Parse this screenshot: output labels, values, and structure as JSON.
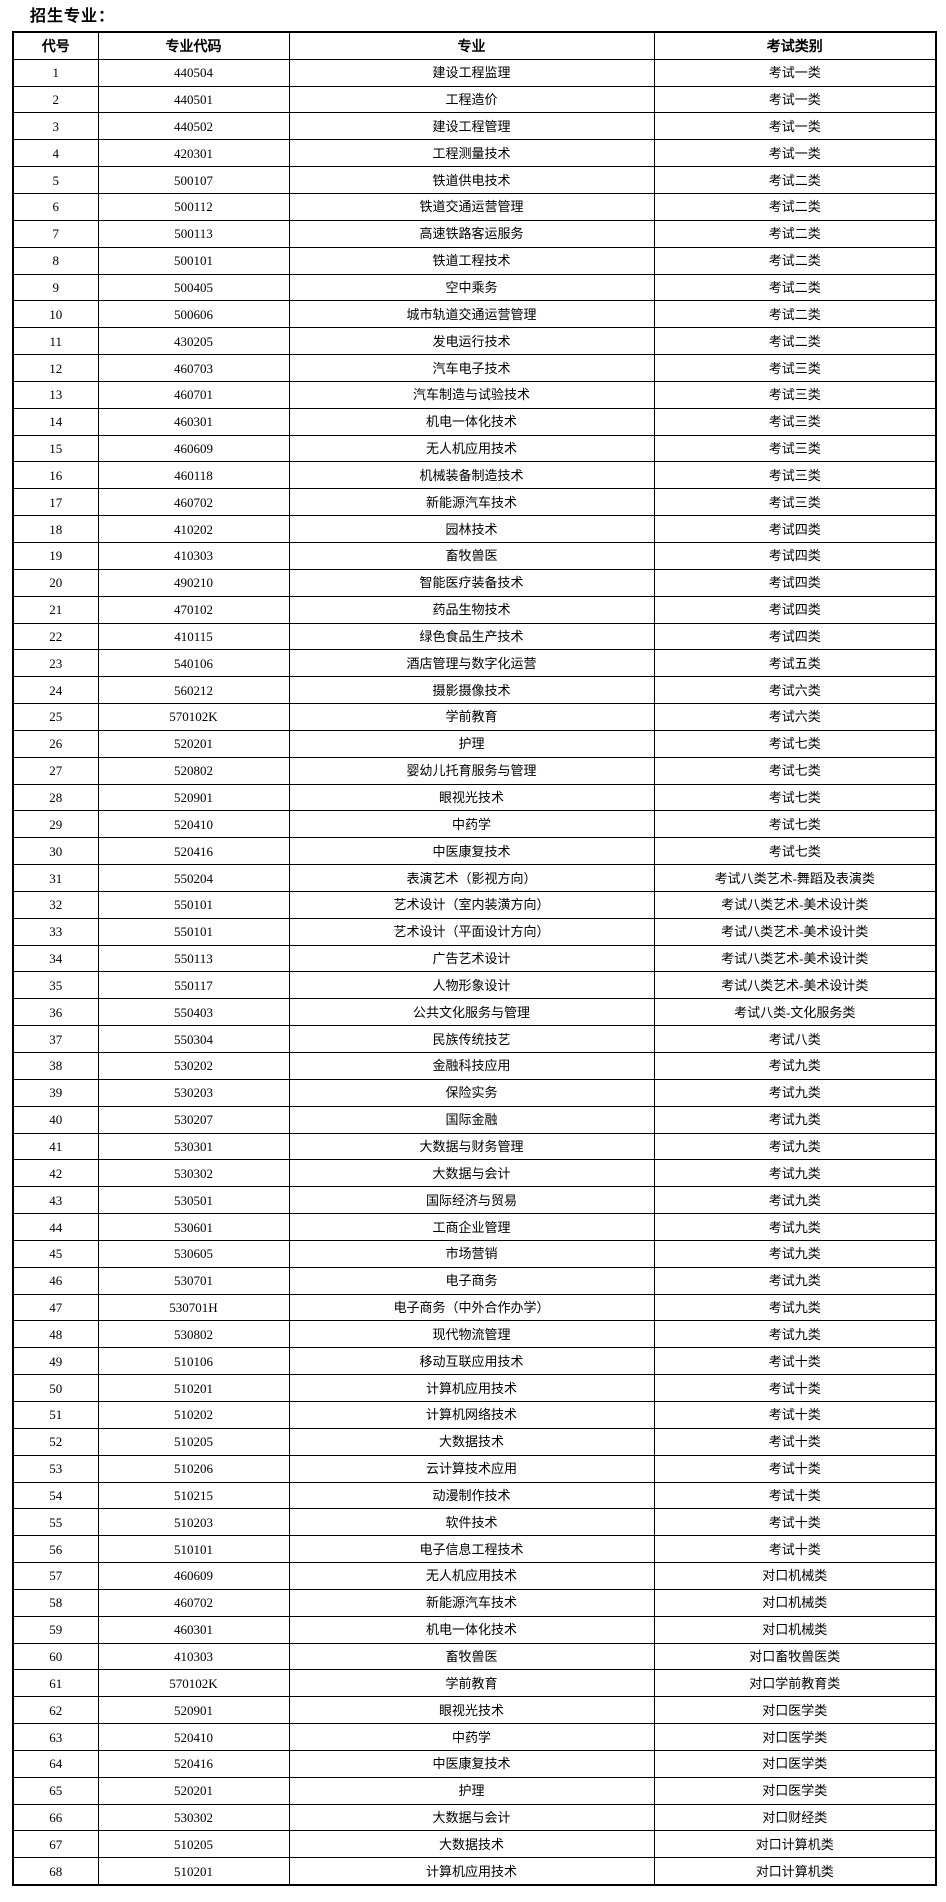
{
  "page": {
    "title": "招生专业："
  },
  "colors": {
    "text": "#000000",
    "border": "#000000",
    "background": "#ffffff"
  },
  "table": {
    "headers": [
      "代号",
      "专业代码",
      "专业",
      "考试类别"
    ],
    "rows": [
      [
        "1",
        "440504",
        "建设工程监理",
        "考试一类"
      ],
      [
        "2",
        "440501",
        "工程造价",
        "考试一类"
      ],
      [
        "3",
        "440502",
        "建设工程管理",
        "考试一类"
      ],
      [
        "4",
        "420301",
        "工程测量技术",
        "考试一类"
      ],
      [
        "5",
        "500107",
        "铁道供电技术",
        "考试二类"
      ],
      [
        "6",
        "500112",
        "铁道交通运营管理",
        "考试二类"
      ],
      [
        "7",
        "500113",
        "高速铁路客运服务",
        "考试二类"
      ],
      [
        "8",
        "500101",
        "铁道工程技术",
        "考试二类"
      ],
      [
        "9",
        "500405",
        "空中乘务",
        "考试二类"
      ],
      [
        "10",
        "500606",
        "城市轨道交通运营管理",
        "考试二类"
      ],
      [
        "11",
        "430205",
        "发电运行技术",
        "考试二类"
      ],
      [
        "12",
        "460703",
        "汽车电子技术",
        "考试三类"
      ],
      [
        "13",
        "460701",
        "汽车制造与试验技术",
        "考试三类"
      ],
      [
        "14",
        "460301",
        "机电一体化技术",
        "考试三类"
      ],
      [
        "15",
        "460609",
        "无人机应用技术",
        "考试三类"
      ],
      [
        "16",
        "460118",
        "机械装备制造技术",
        "考试三类"
      ],
      [
        "17",
        "460702",
        "新能源汽车技术",
        "考试三类"
      ],
      [
        "18",
        "410202",
        "园林技术",
        "考试四类"
      ],
      [
        "19",
        "410303",
        "畜牧兽医",
        "考试四类"
      ],
      [
        "20",
        "490210",
        "智能医疗装备技术",
        "考试四类"
      ],
      [
        "21",
        "470102",
        "药品生物技术",
        "考试四类"
      ],
      [
        "22",
        "410115",
        "绿色食品生产技术",
        "考试四类"
      ],
      [
        "23",
        "540106",
        "酒店管理与数字化运营",
        "考试五类"
      ],
      [
        "24",
        "560212",
        "摄影摄像技术",
        "考试六类"
      ],
      [
        "25",
        "570102K",
        "学前教育",
        "考试六类"
      ],
      [
        "26",
        "520201",
        "护理",
        "考试七类"
      ],
      [
        "27",
        "520802",
        "婴幼儿托育服务与管理",
        "考试七类"
      ],
      [
        "28",
        "520901",
        "眼视光技术",
        "考试七类"
      ],
      [
        "29",
        "520410",
        "中药学",
        "考试七类"
      ],
      [
        "30",
        "520416",
        "中医康复技术",
        "考试七类"
      ],
      [
        "31",
        "550204",
        "表演艺术（影视方向）",
        "考试八类艺术-舞蹈及表演类"
      ],
      [
        "32",
        "550101",
        "艺术设计（室内装潢方向）",
        "考试八类艺术-美术设计类"
      ],
      [
        "33",
        "550101",
        "艺术设计（平面设计方向）",
        "考试八类艺术-美术设计类"
      ],
      [
        "34",
        "550113",
        "广告艺术设计",
        "考试八类艺术-美术设计类"
      ],
      [
        "35",
        "550117",
        "人物形象设计",
        "考试八类艺术-美术设计类"
      ],
      [
        "36",
        "550403",
        "公共文化服务与管理",
        "考试八类-文化服务类"
      ],
      [
        "37",
        "550304",
        "民族传统技艺",
        "考试八类"
      ],
      [
        "38",
        "530202",
        "金融科技应用",
        "考试九类"
      ],
      [
        "39",
        "530203",
        "保险实务",
        "考试九类"
      ],
      [
        "40",
        "530207",
        "国际金融",
        "考试九类"
      ],
      [
        "41",
        "530301",
        "大数据与财务管理",
        "考试九类"
      ],
      [
        "42",
        "530302",
        "大数据与会计",
        "考试九类"
      ],
      [
        "43",
        "530501",
        "国际经济与贸易",
        "考试九类"
      ],
      [
        "44",
        "530601",
        "工商企业管理",
        "考试九类"
      ],
      [
        "45",
        "530605",
        "市场营销",
        "考试九类"
      ],
      [
        "46",
        "530701",
        "电子商务",
        "考试九类"
      ],
      [
        "47",
        "530701H",
        "电子商务（中外合作办学）",
        "考试九类"
      ],
      [
        "48",
        "530802",
        "现代物流管理",
        "考试九类"
      ],
      [
        "49",
        "510106",
        "移动互联应用技术",
        "考试十类"
      ],
      [
        "50",
        "510201",
        "计算机应用技术",
        "考试十类"
      ],
      [
        "51",
        "510202",
        "计算机网络技术",
        "考试十类"
      ],
      [
        "52",
        "510205",
        "大数据技术",
        "考试十类"
      ],
      [
        "53",
        "510206",
        "云计算技术应用",
        "考试十类"
      ],
      [
        "54",
        "510215",
        "动漫制作技术",
        "考试十类"
      ],
      [
        "55",
        "510203",
        "软件技术",
        "考试十类"
      ],
      [
        "56",
        "510101",
        "电子信息工程技术",
        "考试十类"
      ],
      [
        "57",
        "460609",
        "无人机应用技术",
        "对口机械类"
      ],
      [
        "58",
        "460702",
        "新能源汽车技术",
        "对口机械类"
      ],
      [
        "59",
        "460301",
        "机电一体化技术",
        "对口机械类"
      ],
      [
        "60",
        "410303",
        "畜牧兽医",
        "对口畜牧兽医类"
      ],
      [
        "61",
        "570102K",
        "学前教育",
        "对口学前教育类"
      ],
      [
        "62",
        "520901",
        "眼视光技术",
        "对口医学类"
      ],
      [
        "63",
        "520410",
        "中药学",
        "对口医学类"
      ],
      [
        "64",
        "520416",
        "中医康复技术",
        "对口医学类"
      ],
      [
        "65",
        "520201",
        "护理",
        "对口医学类"
      ],
      [
        "66",
        "530302",
        "大数据与会计",
        "对口财经类"
      ],
      [
        "67",
        "510205",
        "大数据技术",
        "对口计算机类"
      ],
      [
        "68",
        "510201",
        "计算机应用技术",
        "对口计算机类"
      ]
    ]
  }
}
